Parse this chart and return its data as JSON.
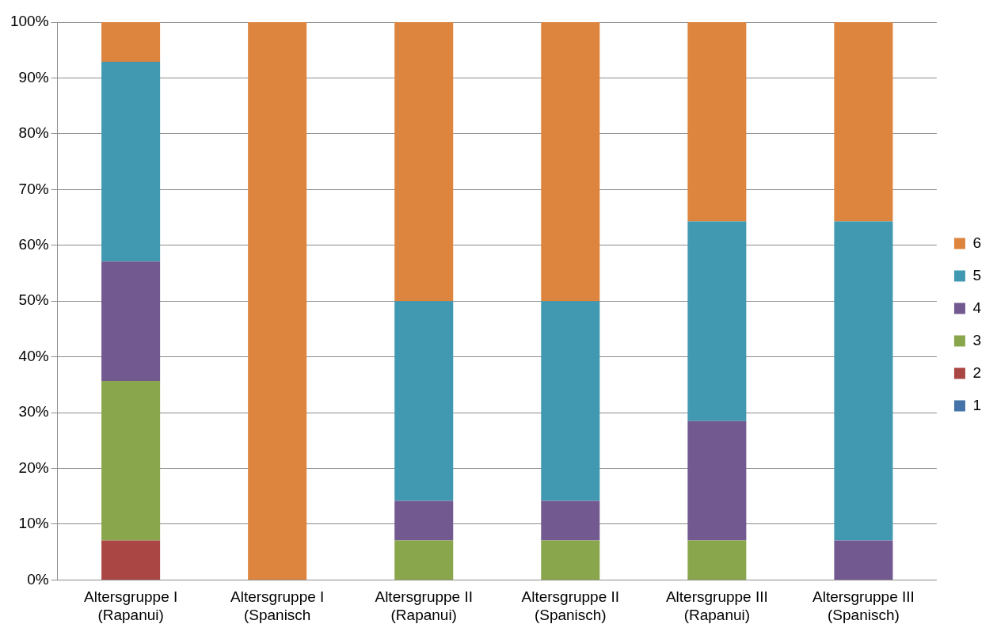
{
  "chart_data": {
    "type": "bar",
    "stacked": true,
    "categories": [
      "Altersgruppe I\n(Rapanui)",
      "Altersgruppe I\n(Spanisch",
      "Altersgruppe II\n(Rapanui)",
      "Altersgruppe II\n(Spanisch)",
      "Altersgruppe III\n(Rapanui)",
      "Altersgruppe III\n(Spanisch)"
    ],
    "series": [
      {
        "name": "1",
        "color": "#4572a7",
        "values": [
          0,
          0,
          0,
          0,
          0,
          0
        ]
      },
      {
        "name": "2",
        "color": "#aa4643",
        "values": [
          7.1,
          0,
          0,
          0,
          0,
          0
        ]
      },
      {
        "name": "3",
        "color": "#8aa64c",
        "values": [
          28.6,
          0,
          7.1,
          7.1,
          7.1,
          0
        ]
      },
      {
        "name": "4",
        "color": "#72598f",
        "values": [
          21.4,
          0,
          7.1,
          7.1,
          21.4,
          7.1
        ]
      },
      {
        "name": "5",
        "color": "#4199b1",
        "values": [
          35.8,
          0,
          35.8,
          35.8,
          35.8,
          57.2
        ]
      },
      {
        "name": "6",
        "color": "#dd843f",
        "values": [
          7.1,
          100,
          50,
          50,
          35.7,
          35.7
        ]
      }
    ],
    "ylim": [
      0,
      100
    ],
    "yticks": [
      {
        "value": 0,
        "label": "0%"
      },
      {
        "value": 10,
        "label": "10%"
      },
      {
        "value": 20,
        "label": "20%"
      },
      {
        "value": 30,
        "label": "30%"
      },
      {
        "value": 40,
        "label": "40%"
      },
      {
        "value": 50,
        "label": "50%"
      },
      {
        "value": 60,
        "label": "60%"
      },
      {
        "value": 70,
        "label": "70%"
      },
      {
        "value": 80,
        "label": "80%"
      },
      {
        "value": 90,
        "label": "90%"
      },
      {
        "value": 100,
        "label": "100%"
      }
    ],
    "grid": "y",
    "legend": "right"
  }
}
